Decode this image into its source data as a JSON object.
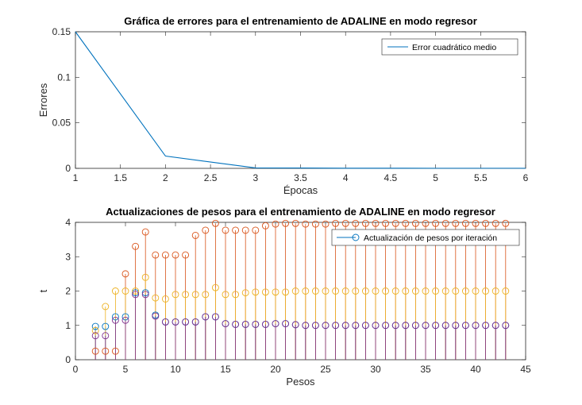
{
  "chart_data": [
    {
      "type": "line",
      "title": "Gráfica de errores para el entrenamiento de ADALINE en modo regresor",
      "xlabel": "Épocas",
      "ylabel": "Errores",
      "xlim": [
        1,
        6
      ],
      "ylim": [
        0,
        0.15
      ],
      "xticks": [
        "1",
        "1.5",
        "2",
        "2.5",
        "3",
        "3.5",
        "4",
        "4.5",
        "5",
        "5.5",
        "6"
      ],
      "yticks": [
        "0",
        "0.05",
        "0.1",
        "0.15"
      ],
      "legend": {
        "position": "top-right",
        "entries": [
          "Error cuadrático medio"
        ]
      },
      "series": [
        {
          "name": "Error cuadrático medio",
          "color": "#0072BD",
          "x": [
            1,
            2,
            3,
            4,
            5,
            6
          ],
          "y": [
            0.15,
            0.0135,
            0.0005,
            0.0002,
            0.0001,
            0.0001
          ]
        }
      ]
    },
    {
      "type": "stem",
      "title": "Actualizaciones de pesos para el entrenamiento de ADALINE en modo regresor",
      "xlabel": "Pesos",
      "ylabel": "t",
      "xlim": [
        0,
        45
      ],
      "ylim": [
        0,
        4
      ],
      "xticks": [
        "0",
        "5",
        "10",
        "15",
        "20",
        "25",
        "30",
        "35",
        "40",
        "45"
      ],
      "yticks": [
        "0",
        "1",
        "2",
        "3",
        "4"
      ],
      "legend": {
        "position": "top-right",
        "entries": [
          "Actualización de pesos por iteración"
        ]
      },
      "x": [
        2,
        3,
        4,
        5,
        6,
        7,
        8,
        9,
        10,
        11,
        12,
        13,
        14,
        15,
        16,
        17,
        18,
        19,
        20,
        21,
        22,
        23,
        24,
        25,
        26,
        27,
        28,
        29,
        30,
        31,
        32,
        33,
        34,
        35,
        36,
        37,
        38,
        39,
        40,
        41,
        42,
        43
      ],
      "series": [
        {
          "name": "Actualización de pesos por iteración",
          "color": "#0072BD",
          "values": [
            0.97,
            0.97,
            1.25,
            1.25,
            1.95,
            1.95,
            1.3,
            1.1,
            1.1,
            1.1,
            1.1,
            1.25,
            1.25,
            1.05,
            1.03,
            1.03,
            1.03,
            1.03,
            1.05,
            1.05,
            1.02,
            1.0,
            1.0,
            1.0,
            1.0,
            1.0,
            1.0,
            1.0,
            1.0,
            1.0,
            1.0,
            1.0,
            1.0,
            1.0,
            1.0,
            1.0,
            1.0,
            1.0,
            1.0,
            1.0,
            1.0,
            1.0
          ]
        },
        {
          "color": "#D95319",
          "values": [
            0.25,
            0.25,
            0.25,
            2.5,
            3.3,
            3.72,
            3.05,
            3.05,
            3.05,
            3.05,
            3.62,
            3.77,
            3.97,
            3.77,
            3.77,
            3.77,
            3.77,
            3.9,
            3.95,
            3.97,
            3.97,
            3.95,
            3.95,
            3.95,
            3.97,
            3.97,
            3.97,
            3.97,
            3.97,
            3.97,
            3.97,
            3.97,
            3.97,
            3.97,
            3.97,
            3.97,
            3.97,
            3.97,
            3.97,
            3.97,
            3.97,
            3.97
          ]
        },
        {
          "color": "#EDB120",
          "values": [
            0.85,
            1.55,
            2.0,
            2.0,
            2.0,
            2.4,
            1.8,
            1.77,
            1.9,
            1.9,
            1.9,
            1.9,
            2.1,
            1.9,
            1.9,
            1.95,
            1.97,
            1.97,
            1.97,
            1.97,
            2.0,
            2.0,
            2.0,
            2.0,
            2.0,
            2.0,
            2.0,
            2.0,
            2.0,
            2.0,
            2.0,
            2.0,
            2.0,
            2.0,
            2.0,
            2.0,
            2.0,
            2.0,
            2.0,
            2.0,
            2.0,
            2.0
          ]
        },
        {
          "color": "#7E2F8E",
          "values": [
            0.7,
            0.7,
            1.15,
            1.15,
            1.9,
            1.9,
            1.27,
            1.1,
            1.1,
            1.1,
            1.1,
            1.25,
            1.25,
            1.05,
            1.03,
            1.03,
            1.03,
            1.03,
            1.05,
            1.05,
            1.02,
            1.0,
            1.0,
            1.0,
            1.0,
            1.0,
            1.0,
            1.0,
            1.0,
            1.0,
            1.0,
            1.0,
            1.0,
            1.0,
            1.0,
            1.0,
            1.0,
            1.0,
            1.0,
            1.0,
            1.0,
            1.0
          ]
        }
      ]
    }
  ]
}
